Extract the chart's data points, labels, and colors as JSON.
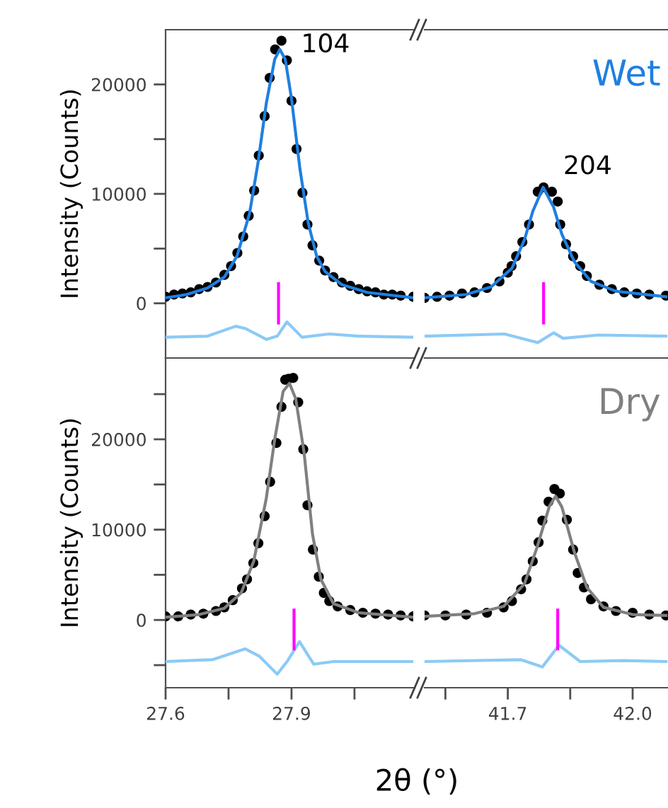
{
  "chart_data": [
    {
      "type": "scatter",
      "ylabel": "Intensity (Counts)",
      "xlim": [
        27.6,
        28.19
      ],
      "ylim": [
        -5000,
        25000
      ],
      "yticks": [
        0,
        {
          "value": 5000,
          "label": null
        },
        10000,
        {
          "value": 15000,
          "label": null
        },
        20000
      ],
      "tick_labels": "y",
      "annotations": [
        "104"
      ],
      "series": [
        {
          "marker": "circle",
          "color": "#000000",
          "x": [
            27.6,
            27.62,
            27.64,
            27.66,
            27.68,
            27.7,
            27.72,
            27.74,
            27.756,
            27.771,
            27.785,
            27.798,
            27.811,
            27.822,
            27.836,
            27.848,
            27.861,
            27.876,
            27.889,
            27.9,
            27.912,
            27.926,
            27.938,
            27.95,
            27.966,
            27.98,
            28.0,
            28.02,
            28.04,
            28.06,
            28.08,
            28.1,
            28.12,
            28.14,
            28.16,
            28.19
          ],
          "values": [
            600,
            800,
            900,
            1000,
            1300,
            1500,
            1900,
            2600,
            3400,
            4600,
            6100,
            8000,
            10300,
            13500,
            17100,
            20600,
            23200,
            24000,
            22200,
            18500,
            14100,
            10100,
            7200,
            5300,
            3900,
            3000,
            2400,
            1900,
            1600,
            1300,
            1100,
            1000,
            800,
            800,
            700,
            600
          ]
        },
        {
          "type": "line",
          "marker": "none",
          "color": "#1f7fe0",
          "x": [
            27.6,
            27.65,
            27.7,
            27.74,
            27.77,
            27.8,
            27.82,
            27.84,
            27.86,
            27.872,
            27.885,
            27.9,
            27.92,
            27.94,
            27.96,
            27.98,
            28.02,
            28.08,
            28.19
          ],
          "values": [
            500,
            800,
            1400,
            2400,
            4300,
            8200,
            12800,
            18300,
            22300,
            23200,
            22300,
            18700,
            12300,
            7300,
            4300,
            2900,
            1700,
            1000,
            500
          ]
        },
        {
          "type": "line",
          "marker": "none",
          "color": "#8ccaf5",
          "x": [
            27.6,
            27.7,
            27.767,
            27.79,
            27.84,
            27.866,
            27.889,
            27.925,
            27.99,
            28.06,
            28.19
          ],
          "values": [
            -3100,
            -3000,
            -2100,
            -2300,
            -3300,
            -3000,
            -1700,
            -3100,
            -2800,
            -3000,
            -3100
          ]
        },
        {
          "type": "line",
          "marker": "none",
          "color": "#ff00ff",
          "x": [
            27.869,
            27.869
          ],
          "values": [
            1800,
            -1800
          ]
        }
      ]
    },
    {
      "type": "scatter",
      "xlim": [
        41.5,
        42.085
      ],
      "ylim": [
        -5000,
        25000
      ],
      "tick_labels": false,
      "annotations": [
        "204",
        "Wet"
      ],
      "series": [
        {
          "marker": "circle",
          "color": "#000000",
          "x": [
            41.5,
            41.53,
            41.56,
            41.59,
            41.62,
            41.65,
            41.68,
            41.7,
            41.709,
            41.72,
            41.735,
            41.751,
            41.772,
            41.786,
            41.806,
            41.82,
            41.826,
            41.84,
            41.857,
            41.874,
            41.89,
            41.92,
            41.95,
            41.98,
            42.01,
            42.04,
            42.08
          ],
          "values": [
            500,
            600,
            700,
            900,
            1000,
            1400,
            2000,
            2800,
            3400,
            4300,
            5600,
            7200,
            10200,
            10600,
            10200,
            9300,
            7200,
            5400,
            4300,
            3400,
            2500,
            1700,
            1300,
            1000,
            900,
            800,
            700
          ]
        },
        {
          "type": "line",
          "marker": "none",
          "color": "#1f7fe0",
          "x": [
            41.5,
            41.6,
            41.66,
            41.71,
            41.74,
            41.76,
            41.785,
            41.81,
            41.83,
            41.86,
            41.9,
            41.96,
            42.08
          ],
          "values": [
            500,
            800,
            1500,
            3200,
            5800,
            8400,
            10600,
            8800,
            6300,
            3800,
            2000,
            1100,
            600
          ]
        },
        {
          "type": "line",
          "marker": "none",
          "color": "#8ccaf5",
          "x": [
            41.5,
            41.692,
            41.772,
            41.81,
            41.833,
            41.918,
            42.08
          ],
          "values": [
            -3000,
            -2800,
            -3600,
            -2700,
            -3200,
            -2900,
            -3000
          ]
        },
        {
          "type": "line",
          "marker": "none",
          "color": "#ff00ff",
          "x": [
            41.786,
            41.786
          ],
          "values": [
            1800,
            -1800
          ]
        }
      ]
    },
    {
      "type": "scatter",
      "ylabel": "Intensity (Counts)",
      "xlabel": "2θ (°)",
      "xlim": [
        27.6,
        28.19
      ],
      "ylim": [
        -7500,
        29000
      ],
      "xticks": [
        27.6,
        {
          "value": 27.75,
          "label": null
        },
        27.9,
        {
          "value": 28.05,
          "label": null
        }
      ],
      "yticks": [
        {
          "value": -5000,
          "label": null
        },
        0,
        {
          "value": 5000,
          "label": null
        },
        10000,
        {
          "value": 15000,
          "label": null
        },
        20000,
        {
          "value": 25000,
          "label": null
        }
      ],
      "series": [
        {
          "marker": "circle",
          "color": "#000000",
          "x": [
            27.6,
            27.63,
            27.66,
            27.69,
            27.72,
            27.74,
            27.76,
            27.782,
            27.794,
            27.809,
            27.821,
            27.836,
            27.849,
            27.864,
            27.876,
            27.885,
            27.893,
            27.904,
            27.916,
            27.928,
            27.938,
            27.951,
            27.965,
            27.977,
            27.99,
            28.01,
            28.04,
            28.07,
            28.1,
            28.13,
            28.16,
            28.19
          ],
          "values": [
            400,
            400,
            600,
            700,
            1000,
            1400,
            2200,
            3500,
            4500,
            6300,
            8500,
            11500,
            15300,
            19600,
            23600,
            26600,
            26700,
            26800,
            24100,
            18900,
            12700,
            7800,
            4800,
            3000,
            2100,
            1500,
            1100,
            800,
            700,
            600,
            500,
            400
          ]
        },
        {
          "type": "line",
          "marker": "none",
          "color": "#808080",
          "x": [
            27.6,
            27.68,
            27.74,
            27.78,
            27.81,
            27.84,
            27.86,
            27.88,
            27.895,
            27.91,
            27.93,
            27.95,
            27.97,
            28.0,
            28.06,
            28.19
          ],
          "values": [
            300,
            600,
            1300,
            3000,
            6500,
            13500,
            20000,
            25300,
            26200,
            24500,
            18500,
            9500,
            4500,
            1800,
            800,
            300
          ]
        },
        {
          "type": "line",
          "marker": "none",
          "color": "#8ccaf5",
          "x": [
            27.6,
            27.711,
            27.79,
            27.823,
            27.866,
            27.891,
            27.919,
            27.953,
            28.0,
            28.19
          ],
          "values": [
            -4600,
            -4400,
            -3200,
            -4000,
            -6000,
            -4500,
            -2400,
            -4900,
            -4600,
            -4600
          ]
        },
        {
          "type": "line",
          "marker": "none",
          "color": "#ff00ff",
          "x": [
            27.906,
            27.906
          ],
          "values": [
            1100,
            -3200
          ]
        }
      ]
    },
    {
      "type": "scatter",
      "xlim": [
        41.5,
        42.085
      ],
      "ylim": [
        -7500,
        29000
      ],
      "xticks": [
        {
          "value": 41.55,
          "label": null
        },
        41.7,
        {
          "value": 41.85,
          "label": null
        },
        {
          "value": 42.0,
          "label": "42.0"
        }
      ],
      "tick_labels": "x",
      "annotations": [
        "Dry"
      ],
      "series": [
        {
          "marker": "circle",
          "color": "#000000",
          "x": [
            41.5,
            41.55,
            41.6,
            41.65,
            41.69,
            41.71,
            41.732,
            41.745,
            41.76,
            41.774,
            41.783,
            41.798,
            41.812,
            41.825,
            41.842,
            41.857,
            41.868,
            41.883,
            41.9,
            41.93,
            41.96,
            42.0,
            42.04,
            42.08
          ],
          "values": [
            500,
            500,
            600,
            800,
            1400,
            2100,
            3400,
            4500,
            6500,
            8600,
            11000,
            13100,
            14500,
            14000,
            11100,
            7800,
            5200,
            3600,
            2300,
            1500,
            1000,
            800,
            600,
            500
          ]
        },
        {
          "type": "line",
          "marker": "none",
          "color": "#808080",
          "x": [
            41.5,
            41.62,
            41.69,
            41.74,
            41.77,
            41.8,
            41.815,
            41.83,
            41.86,
            41.89,
            41.93,
            42.0,
            42.08
          ],
          "values": [
            400,
            700,
            1500,
            4000,
            8000,
            12600,
            13700,
            12500,
            7500,
            3600,
            1400,
            600,
            500
          ]
        },
        {
          "type": "line",
          "marker": "none",
          "color": "#8ccaf5",
          "x": [
            41.5,
            41.732,
            41.783,
            41.823,
            41.874,
            41.976,
            42.08
          ],
          "values": [
            -4600,
            -4400,
            -5200,
            -2800,
            -4600,
            -4500,
            -4600
          ]
        },
        {
          "type": "line",
          "marker": "none",
          "color": "#ff00ff",
          "x": [
            41.82,
            41.82
          ],
          "values": [
            1100,
            -3200
          ]
        }
      ]
    }
  ]
}
